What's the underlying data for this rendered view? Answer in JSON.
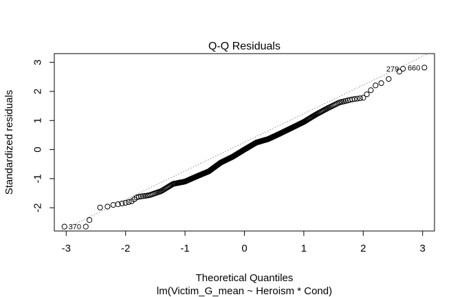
{
  "chart_data": {
    "type": "scatter",
    "title": "Q-Q Residuals",
    "xlabel": "Theoretical Quantiles",
    "ylabel": "Standardized residuals",
    "subtitle": "lm(Victim_G_mean ~ Heroism * Cond)",
    "xlim": [
      -3.2,
      3.2
    ],
    "ylim": [
      -2.8,
      3.3
    ],
    "x_ticks": [
      -3,
      -2,
      -1,
      0,
      1,
      2,
      3
    ],
    "y_ticks": [
      -2,
      -1,
      0,
      1,
      2,
      3
    ],
    "x_tick_labels": [
      "-3",
      "-2",
      "-1",
      "0",
      "1",
      "2",
      "3"
    ],
    "y_tick_labels": [
      "-2",
      "-1",
      "0",
      "1",
      "2",
      "3"
    ],
    "grid": false,
    "reference_line": {
      "style": "dotted",
      "color": "#888888",
      "through": [
        [
          -3.2,
          -2.9
        ],
        [
          3.2,
          3.4
        ]
      ]
    },
    "marker": "open-circle",
    "annotations": [
      {
        "label": "370",
        "x": -3.03,
        "y": -2.65,
        "side": "right"
      },
      {
        "label": "279",
        "x": 2.67,
        "y": 2.78,
        "side": "left"
      },
      {
        "label": "660",
        "x": 3.03,
        "y": 2.82,
        "side": "left"
      }
    ],
    "quantile_curve": [
      [
        -3.03,
        -2.65
      ],
      [
        -2.67,
        -2.65
      ],
      [
        -2.5,
        -2.02
      ],
      [
        -2.4,
        -1.98
      ],
      [
        -2.3,
        -1.96
      ],
      [
        -2.2,
        -1.9
      ],
      [
        -2.1,
        -1.87
      ],
      [
        -2.0,
        -1.83
      ],
      [
        -1.9,
        -1.78
      ],
      [
        -1.8,
        -1.63
      ],
      [
        -1.6,
        -1.57
      ],
      [
        -1.4,
        -1.43
      ],
      [
        -1.2,
        -1.18
      ],
      [
        -1.0,
        -1.1
      ],
      [
        -0.8,
        -0.92
      ],
      [
        -0.6,
        -0.75
      ],
      [
        -0.4,
        -0.45
      ],
      [
        -0.2,
        -0.25
      ],
      [
        0.0,
        0.0
      ],
      [
        0.2,
        0.24
      ],
      [
        0.4,
        0.36
      ],
      [
        0.6,
        0.55
      ],
      [
        0.8,
        0.75
      ],
      [
        1.0,
        0.95
      ],
      [
        1.2,
        1.2
      ],
      [
        1.4,
        1.42
      ],
      [
        1.6,
        1.62
      ],
      [
        1.8,
        1.72
      ],
      [
        2.0,
        1.78
      ],
      [
        2.1,
        1.98
      ],
      [
        2.2,
        2.2
      ],
      [
        2.3,
        2.28
      ],
      [
        2.4,
        2.4
      ],
      [
        2.5,
        2.5
      ],
      [
        2.67,
        2.78
      ],
      [
        3.03,
        2.82
      ]
    ],
    "n_points": 330
  }
}
